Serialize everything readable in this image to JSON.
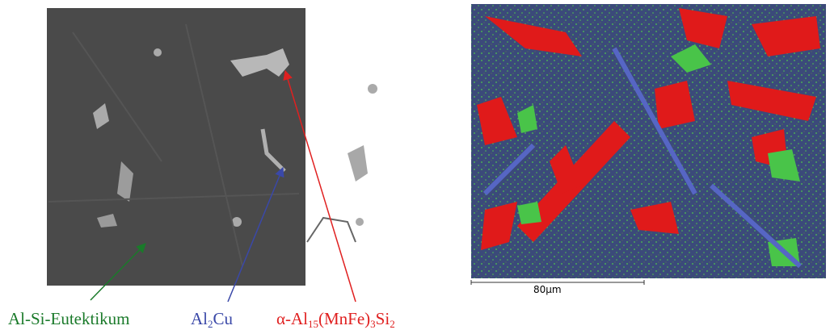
{
  "labels": {
    "eutectic": [
      "Al-Si-Eutektikum"
    ],
    "al2cu": [
      "Al",
      "2",
      "Cu"
    ],
    "alpha": [
      "α-Al",
      "15",
      "(MnFe)",
      "3",
      "Si",
      "2"
    ]
  },
  "scale_bar": {
    "label": "80µm"
  }
}
